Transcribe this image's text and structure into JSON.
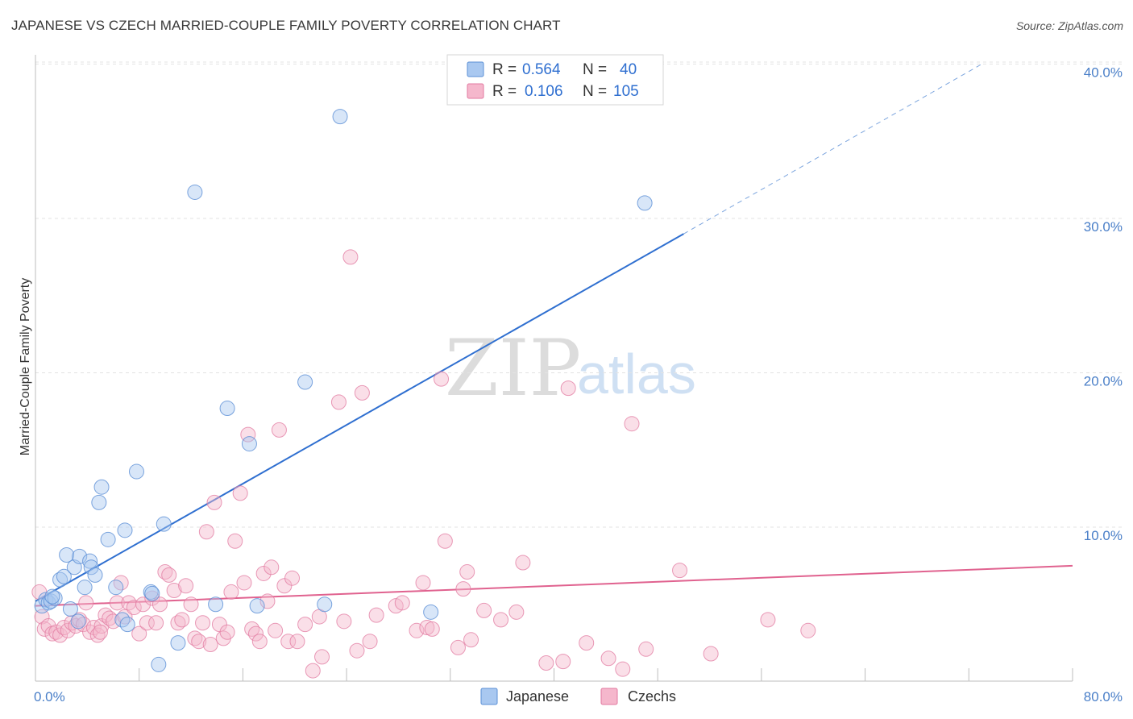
{
  "header": {
    "title": "JAPANESE VS CZECH MARRIED-COUPLE FAMILY POVERTY CORRELATION CHART",
    "source": "Source: ZipAtlas.com"
  },
  "colors": {
    "japanese": "#5b8fd6",
    "japanese_fill": "#a9c8f0",
    "japanese_line": "#2f6fd0",
    "czech": "#e27aa0",
    "czech_fill": "#f5b7cc",
    "czech_line": "#e0628f",
    "grid": "#e3e3e3",
    "tick_text": "#4a7fc8"
  },
  "legend": {
    "r_label": "R =",
    "n_label": "N =",
    "japanese": {
      "r": "0.564",
      "n": "40"
    },
    "czech": {
      "r": "0.106",
      "n": "105"
    }
  },
  "watermark": {
    "zip": "ZIP",
    "atlas": "atlas"
  },
  "chart_data": {
    "type": "scatter",
    "title": "JAPANESE VS CZECH MARRIED-COUPLE FAMILY POVERTY CORRELATION CHART",
    "xlabel": "",
    "ylabel": "Married-Couple Family Poverty",
    "xlim": [
      0,
      80
    ],
    "ylim": [
      0,
      42
    ],
    "x_ticks_labels": [
      "0.0%",
      "80.0%"
    ],
    "y_ticks": [
      10,
      20,
      30,
      40
    ],
    "y_ticks_labels": [
      "10.0%",
      "20.0%",
      "30.0%",
      "40.0%"
    ],
    "legend_position": "top-center",
    "series": [
      {
        "name": "Japanese",
        "r": 0.564,
        "n": 40,
        "trend": {
          "x0": 0,
          "y0": 5.2,
          "x1": 50,
          "y1": 29.0,
          "dashed_to_x": 73,
          "dashed_to_y": 40.0
        },
        "points": [
          [
            0.5,
            4.9
          ],
          [
            0.8,
            5.3
          ],
          [
            1.0,
            5.1
          ],
          [
            1.2,
            5.2
          ],
          [
            1.5,
            5.4
          ],
          [
            1.9,
            6.6
          ],
          [
            2.2,
            6.8
          ],
          [
            2.4,
            8.2
          ],
          [
            2.7,
            4.7
          ],
          [
            3.0,
            7.4
          ],
          [
            3.4,
            8.1
          ],
          [
            3.8,
            6.1
          ],
          [
            4.2,
            7.8
          ],
          [
            4.3,
            7.4
          ],
          [
            4.6,
            6.9
          ],
          [
            5.1,
            12.6
          ],
          [
            4.9,
            11.6
          ],
          [
            5.6,
            9.2
          ],
          [
            6.2,
            6.1
          ],
          [
            6.7,
            4.0
          ],
          [
            6.9,
            9.8
          ],
          [
            7.1,
            3.7
          ],
          [
            7.8,
            13.6
          ],
          [
            8.9,
            5.8
          ],
          [
            9.0,
            5.7
          ],
          [
            9.5,
            1.1
          ],
          [
            9.9,
            10.2
          ],
          [
            11.0,
            2.5
          ],
          [
            12.3,
            31.7
          ],
          [
            13.9,
            5.0
          ],
          [
            14.8,
            17.7
          ],
          [
            16.5,
            15.4
          ],
          [
            17.1,
            4.9
          ],
          [
            20.8,
            19.4
          ],
          [
            22.3,
            5.0
          ],
          [
            23.5,
            36.6
          ],
          [
            30.5,
            4.5
          ],
          [
            47.0,
            31.0
          ],
          [
            3.3,
            3.9
          ],
          [
            1.3,
            5.5
          ]
        ]
      },
      {
        "name": "Czechs",
        "r": 0.106,
        "n": 105,
        "trend": {
          "x0": 0,
          "y0": 4.9,
          "x1": 80,
          "y1": 7.5
        },
        "points": [
          [
            0.3,
            5.8
          ],
          [
            0.5,
            4.2
          ],
          [
            0.7,
            3.4
          ],
          [
            1.0,
            3.6
          ],
          [
            1.3,
            3.1
          ],
          [
            1.6,
            3.2
          ],
          [
            1.9,
            3.0
          ],
          [
            2.2,
            3.5
          ],
          [
            2.5,
            3.3
          ],
          [
            2.8,
            3.8
          ],
          [
            3.1,
            3.6
          ],
          [
            3.4,
            4.0
          ],
          [
            3.7,
            3.7
          ],
          [
            3.9,
            5.1
          ],
          [
            4.2,
            3.2
          ],
          [
            4.5,
            3.5
          ],
          [
            4.8,
            3.0
          ],
          [
            5.1,
            3.6
          ],
          [
            5.4,
            4.3
          ],
          [
            5.7,
            4.1
          ],
          [
            6.0,
            3.9
          ],
          [
            6.3,
            5.1
          ],
          [
            6.6,
            6.4
          ],
          [
            6.9,
            4.2
          ],
          [
            7.2,
            5.1
          ],
          [
            7.6,
            4.8
          ],
          [
            8.0,
            3.1
          ],
          [
            8.3,
            5.0
          ],
          [
            8.6,
            3.8
          ],
          [
            9.0,
            5.4
          ],
          [
            9.3,
            3.8
          ],
          [
            9.6,
            5.0
          ],
          [
            10.0,
            7.1
          ],
          [
            10.3,
            6.9
          ],
          [
            10.7,
            5.9
          ],
          [
            11.0,
            3.8
          ],
          [
            11.3,
            4.0
          ],
          [
            11.6,
            6.2
          ],
          [
            12.0,
            5.0
          ],
          [
            12.3,
            2.8
          ],
          [
            12.6,
            2.6
          ],
          [
            12.9,
            3.8
          ],
          [
            13.2,
            9.7
          ],
          [
            13.5,
            2.4
          ],
          [
            13.8,
            11.6
          ],
          [
            14.2,
            3.7
          ],
          [
            14.5,
            2.8
          ],
          [
            14.8,
            3.2
          ],
          [
            15.1,
            5.8
          ],
          [
            15.4,
            9.1
          ],
          [
            15.8,
            12.2
          ],
          [
            16.1,
            6.4
          ],
          [
            16.4,
            16.0
          ],
          [
            16.7,
            3.4
          ],
          [
            17.0,
            3.1
          ],
          [
            17.3,
            2.6
          ],
          [
            17.6,
            7.0
          ],
          [
            17.9,
            5.2
          ],
          [
            18.2,
            7.4
          ],
          [
            18.5,
            3.3
          ],
          [
            18.8,
            16.3
          ],
          [
            19.2,
            6.2
          ],
          [
            19.5,
            2.6
          ],
          [
            19.8,
            6.7
          ],
          [
            20.2,
            2.6
          ],
          [
            20.8,
            3.7
          ],
          [
            21.4,
            0.7
          ],
          [
            21.9,
            4.2
          ],
          [
            22.1,
            1.6
          ],
          [
            23.4,
            18.1
          ],
          [
            23.8,
            3.9
          ],
          [
            24.3,
            27.5
          ],
          [
            24.8,
            2.0
          ],
          [
            25.2,
            18.7
          ],
          [
            25.8,
            2.6
          ],
          [
            26.3,
            4.3
          ],
          [
            27.8,
            4.9
          ],
          [
            28.3,
            5.1
          ],
          [
            29.4,
            3.3
          ],
          [
            29.9,
            6.4
          ],
          [
            30.2,
            3.5
          ],
          [
            30.6,
            3.4
          ],
          [
            31.3,
            19.6
          ],
          [
            31.6,
            9.1
          ],
          [
            32.6,
            2.2
          ],
          [
            33.0,
            6.0
          ],
          [
            33.3,
            7.1
          ],
          [
            33.6,
            2.7
          ],
          [
            34.6,
            4.6
          ],
          [
            35.9,
            4.0
          ],
          [
            37.1,
            4.5
          ],
          [
            37.6,
            7.7
          ],
          [
            39.4,
            1.2
          ],
          [
            40.7,
            1.3
          ],
          [
            41.1,
            19.0
          ],
          [
            42.5,
            2.5
          ],
          [
            44.2,
            1.5
          ],
          [
            45.3,
            0.8
          ],
          [
            46.0,
            16.7
          ],
          [
            47.1,
            2.1
          ],
          [
            49.7,
            7.2
          ],
          [
            52.1,
            1.8
          ],
          [
            56.5,
            4.0
          ],
          [
            59.6,
            3.3
          ],
          [
            5.0,
            3.2
          ]
        ]
      }
    ]
  },
  "bottom_legend": {
    "japanese_label": "Japanese",
    "czech_label": "Czechs"
  }
}
